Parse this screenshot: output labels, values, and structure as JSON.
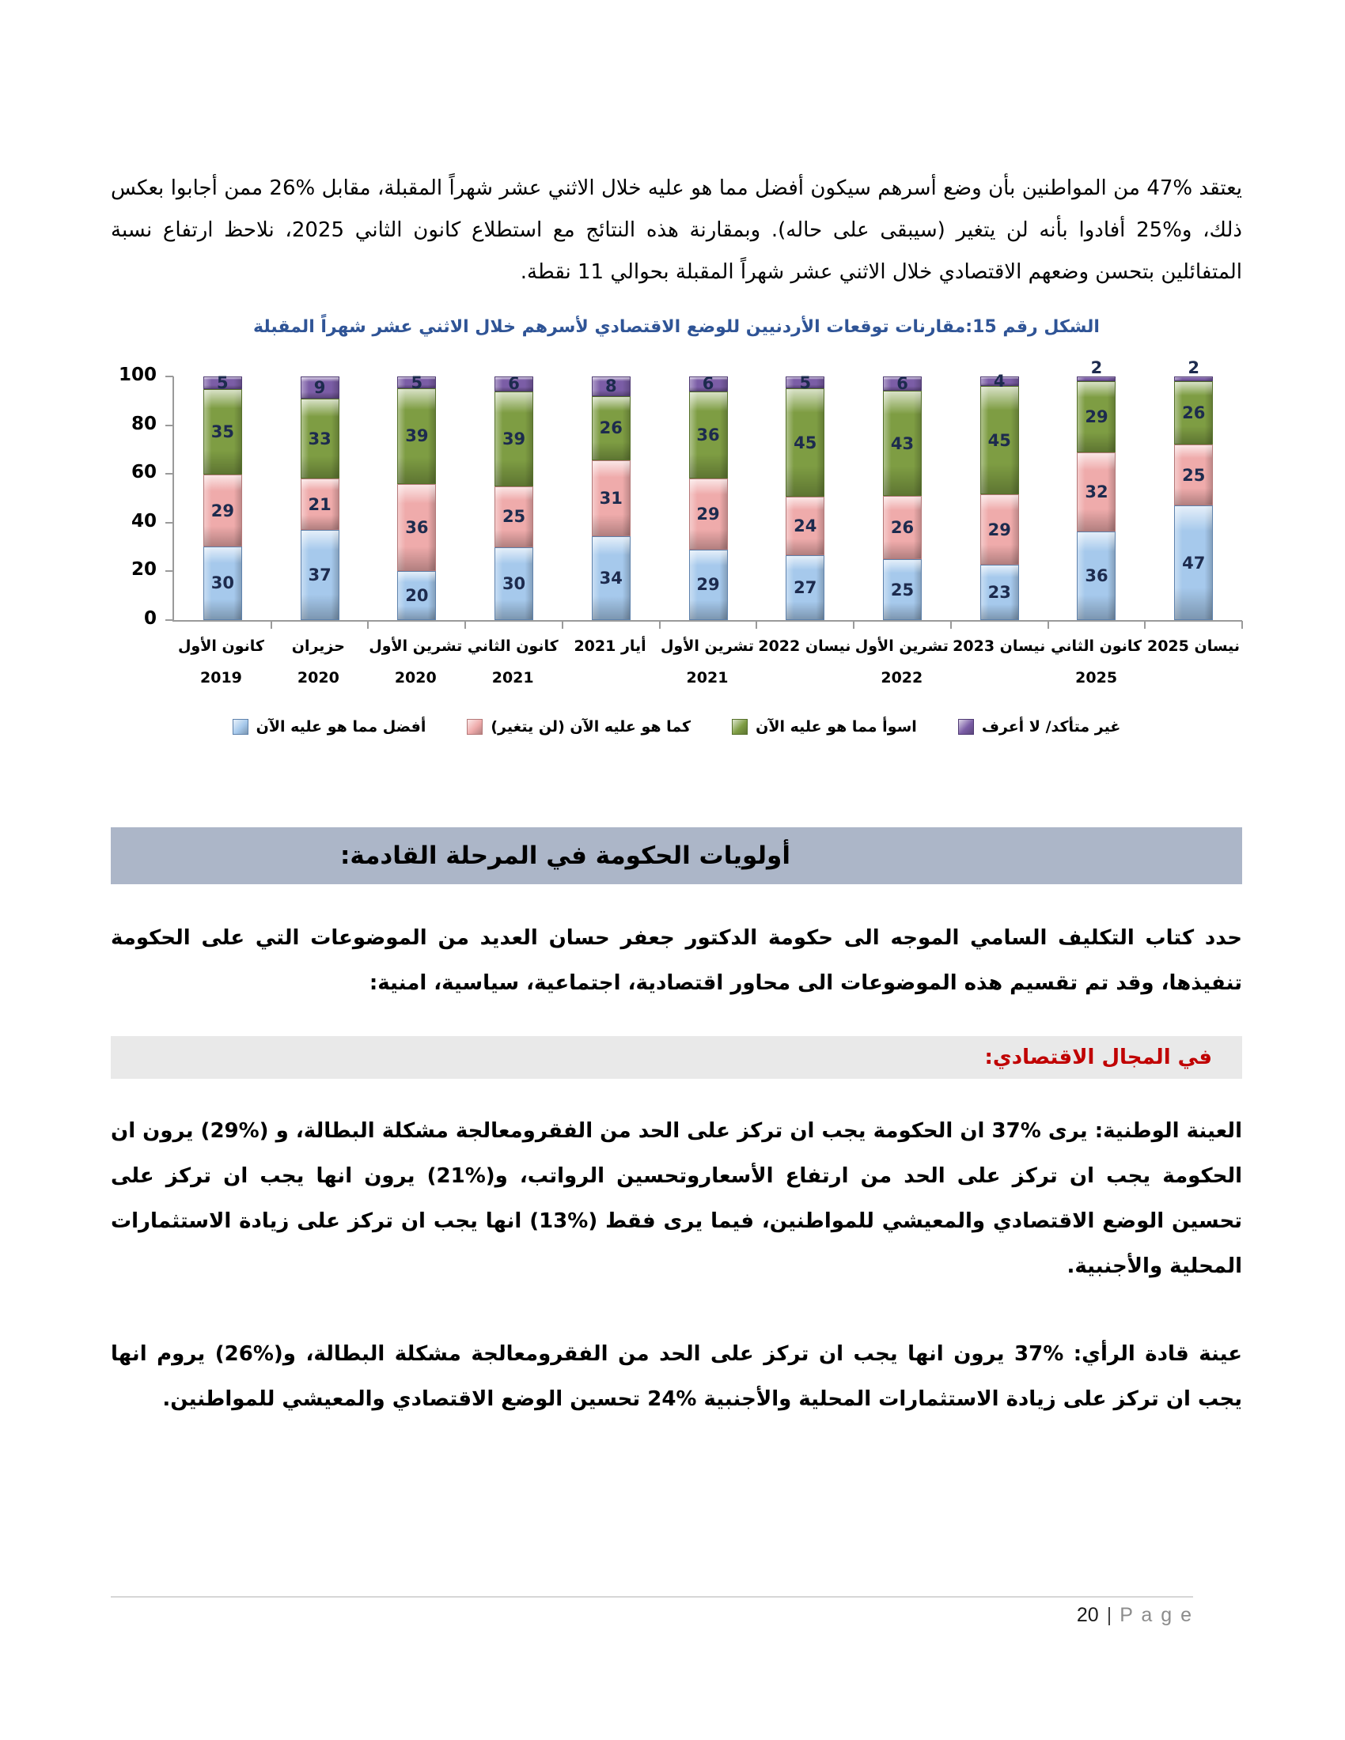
{
  "document": {
    "paragraph_intro": "يعتقد %47 من المواطنين بأن وضع أسرهم سيكون أفضل مما هو عليه خلال الاثني عشر شهراً المقبلة، مقابل %26 ممن أجابوا بعكس ذلك، و%25 أفادوا بأنه لن يتغير (سيبقى على حاله). وبمقارنة هذه النتائج مع استطلاع كانون الثاني 2025، نلاحظ ارتفاع نسبة المتفائلين بتحسن وضعهم الاقتصادي خلال الاثني عشر شهراً المقبلة بحوالي 11 نقطة.",
    "section_header": "أولويات الحكومة في المرحلة القادمة:",
    "paragraph_assignment": "حدد كتاب التكليف السامي الموجه الى حكومة الدكتور جعفر حسان العديد من الموضوعات التي على الحكومة تنفيذها، وقد تم تقسيم هذه الموضوعات الى محاور اقتصادية، اجتماعية، سياسية، امنية:",
    "subsection_header": "في المجال الاقتصادي:",
    "paragraph_national": "العينة الوطنية: يرى %37 ان الحكومة يجب ان تركز على الحد من الفقرومعالجة مشكلة البطالة، و (%29) يرون ان الحكومة يجب ان تركز على الحد من ارتفاع الأسعاروتحسين الرواتب، و(%21) يرون انها يجب ان تركز على تحسين الوضع الاقتصادي والمعيشي للمواطنين، فيما يرى فقط (%13) انها يجب ان تركز على زيادة الاستثمارات المحلية والأجنبية.",
    "paragraph_leaders": "عينة قادة الرأي: %37 يرون انها يجب ان تركز على الحد من الفقرومعالجة مشكلة البطالة، و(%26) يروم انها يجب ان تركز على زيادة الاستثمارات المحلية والأجنبية %24 تحسين الوضع الاقتصادي والمعيشي للمواطنين.",
    "footer": {
      "page_number": "20",
      "separator": "|",
      "page_word": "P a g e"
    },
    "colors": {
      "section_band_bg": "#ACB6C8",
      "subsection_band_bg": "#E9E9E9",
      "subsection_text": "#C00000",
      "figure_title": "#2F5496"
    }
  },
  "chart_data": {
    "type": "bar",
    "stacked": true,
    "title": "الشكل رقم 15:مقارنات توقعات الأردنيين للوضع الاقتصادي لأسرهم خلال الاثني عشر شهراً المقبلة",
    "ylim": [
      0,
      100
    ],
    "yticks": [
      0,
      20,
      40,
      60,
      80,
      100
    ],
    "grid": false,
    "legend_position": "bottom",
    "categories": [
      {
        "line1": "كانون الأول",
        "line2": "2019"
      },
      {
        "line1": "حزيران 2020",
        "line2": ""
      },
      {
        "line1": "تشرين الأول",
        "line2": "2020"
      },
      {
        "line1": "كانون الثاني",
        "line2": "2021"
      },
      {
        "line1": "أيار 2021",
        "line2": ""
      },
      {
        "line1": "تشرين الأول",
        "line2": "2021"
      },
      {
        "line1": "نيسان 2022",
        "line2": ""
      },
      {
        "line1": "تشرين الأول",
        "line2": "2022"
      },
      {
        "line1": "نيسان 2023",
        "line2": ""
      },
      {
        "line1": "كانون الثاني",
        "line2": "2025"
      },
      {
        "line1": "نيسان 2025",
        "line2": ""
      }
    ],
    "series": [
      {
        "name": "أفضل مما هو عليه الآن",
        "color": "#A6C9EC",
        "border": "#5E82AC",
        "values": [
          30,
          37,
          20,
          30,
          34,
          29,
          27,
          25,
          23,
          36,
          47
        ]
      },
      {
        "name": "كما هو عليه الآن (لن يتغير)",
        "color": "#EFABAB",
        "border": "#B47878",
        "values": [
          29,
          21,
          36,
          25,
          31,
          29,
          24,
          26,
          29,
          32,
          25
        ]
      },
      {
        "name": "اسوأ مما هو عليه الآن",
        "color": "#7E9D43",
        "border": "#55702A",
        "values": [
          35,
          33,
          39,
          39,
          26,
          36,
          45,
          43,
          45,
          29,
          26
        ]
      },
      {
        "name": "غير متأكد/ لا أعرف",
        "color": "#7B5DA6",
        "border": "#4F3A73",
        "values": [
          5,
          9,
          5,
          6,
          8,
          6,
          5,
          6,
          4,
          2,
          2
        ]
      }
    ]
  }
}
